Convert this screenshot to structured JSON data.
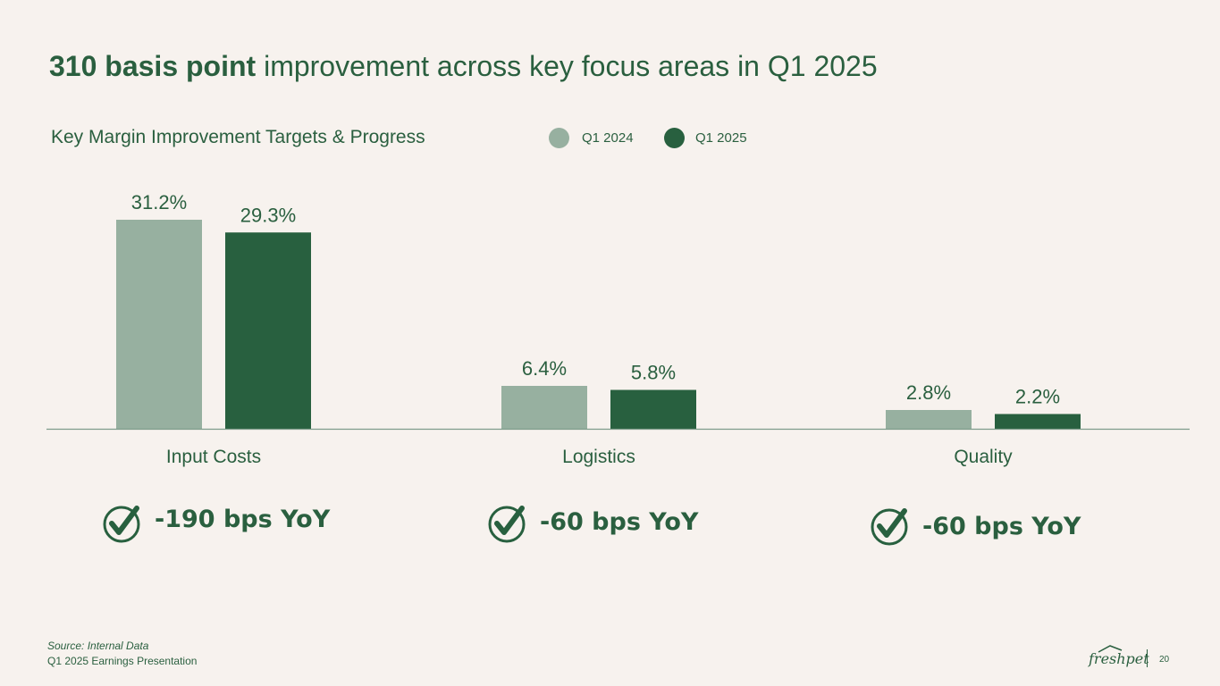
{
  "title": {
    "bold": "310 basis point",
    "rest": " improvement across key focus areas in Q1 2025"
  },
  "colors": {
    "q1_2024": "#97b0a0",
    "q1_2025": "#28603f",
    "text": "#2a5f3f",
    "background": "#f7f2ee"
  },
  "chart_data": {
    "type": "bar",
    "title": "Key Margin Improvement Targets & Progress",
    "categories": [
      "Input Costs",
      "Logistics",
      "Quality"
    ],
    "series": [
      {
        "name": "Q1 2024",
        "values": [
          31.2,
          6.4,
          2.8
        ],
        "labels": [
          "31.2%",
          "6.4%",
          "2.8%"
        ]
      },
      {
        "name": "Q1 2025",
        "values": [
          29.3,
          5.8,
          2.2
        ],
        "labels": [
          "29.3%",
          "5.8%",
          "2.2%"
        ]
      }
    ],
    "xlabel": "",
    "ylabel": "",
    "ylim": [
      0,
      31.2
    ],
    "grid": false,
    "legend": "top"
  },
  "yoy": [
    {
      "text": "-190 bps YoY"
    },
    {
      "text": "-60 bps YoY"
    },
    {
      "text": "-60 bps YoY"
    }
  ],
  "footer": {
    "source": "Source: Internal Data",
    "presentation": "Q1 2025 Earnings Presentation",
    "logo": "freshpet",
    "page": "20"
  }
}
